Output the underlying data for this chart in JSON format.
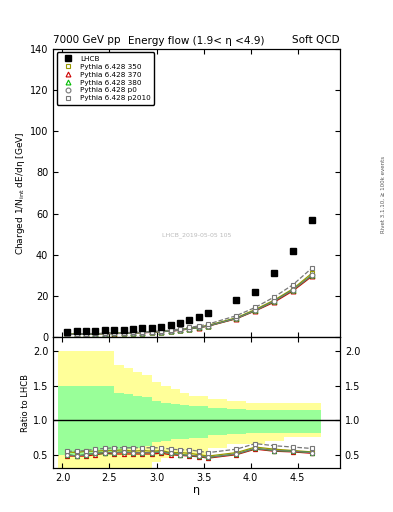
{
  "title_left": "7000 GeV pp",
  "title_right": "Soft QCD",
  "plot_title": "Energy flow (1.9< η <4.9)",
  "ylabel_main": "Charged 1/N$_\\mathrm{int}$ dE/dη [GeV]",
  "ylabel_ratio": "Ratio to LHCB",
  "xlabel": "η",
  "right_label": "Rivet 3.1.10, ≥ 100k events",
  "watermark": "LHCB_2019-05-05 105",
  "lhcb_eta": [
    2.05,
    2.15,
    2.25,
    2.35,
    2.45,
    2.55,
    2.65,
    2.75,
    2.85,
    2.95,
    3.05,
    3.15,
    3.25,
    3.35,
    3.45,
    3.55,
    3.85,
    4.05,
    4.25,
    4.45,
    4.65
  ],
  "lhcb_y": [
    2.8,
    3.0,
    3.1,
    3.2,
    3.3,
    3.5,
    3.7,
    4.0,
    4.3,
    4.7,
    5.2,
    6.0,
    7.0,
    8.5,
    10.0,
    12.0,
    18.0,
    22.0,
    31.0,
    42.0,
    57.0
  ],
  "mc_eta": [
    2.05,
    2.15,
    2.25,
    2.35,
    2.45,
    2.55,
    2.65,
    2.75,
    2.85,
    2.95,
    3.05,
    3.15,
    3.25,
    3.35,
    3.45,
    3.55,
    3.85,
    4.05,
    4.25,
    4.45,
    4.65
  ],
  "p350_y": [
    1.5,
    1.6,
    1.7,
    1.75,
    1.85,
    1.95,
    2.1,
    2.2,
    2.4,
    2.6,
    2.9,
    3.2,
    3.7,
    4.4,
    5.0,
    5.8,
    9.5,
    13.5,
    18.0,
    23.5,
    31.0
  ],
  "p370_y": [
    1.35,
    1.45,
    1.5,
    1.6,
    1.7,
    1.8,
    1.9,
    2.05,
    2.2,
    2.4,
    2.7,
    3.0,
    3.4,
    4.1,
    4.7,
    5.4,
    9.0,
    12.8,
    17.0,
    22.5,
    29.5
  ],
  "p380_y": [
    1.4,
    1.45,
    1.55,
    1.65,
    1.75,
    1.85,
    2.0,
    2.1,
    2.3,
    2.5,
    2.8,
    3.1,
    3.5,
    4.2,
    4.8,
    5.5,
    9.2,
    13.0,
    17.5,
    23.0,
    30.0
  ],
  "pp0_y": [
    1.4,
    1.45,
    1.55,
    1.65,
    1.75,
    1.85,
    2.0,
    2.1,
    2.3,
    2.5,
    2.8,
    3.1,
    3.5,
    4.2,
    4.8,
    5.5,
    9.2,
    13.0,
    17.5,
    23.0,
    30.0
  ],
  "pp2010_y": [
    1.55,
    1.65,
    1.75,
    1.85,
    1.95,
    2.1,
    2.2,
    2.4,
    2.6,
    2.8,
    3.1,
    3.5,
    4.0,
    4.8,
    5.5,
    6.4,
    10.5,
    14.5,
    19.5,
    25.5,
    33.5
  ],
  "ylim_main": [
    0,
    140
  ],
  "ylim_ratio": [
    0.3,
    2.2
  ],
  "color_350": "#999900",
  "color_370": "#cc0000",
  "color_380": "#00bb00",
  "color_p0": "#777777",
  "color_p2010": "#777777",
  "xlim": [
    1.9,
    4.95
  ],
  "xticks": [
    2,
    2.5,
    3,
    3.5,
    4,
    4.5
  ],
  "yticks_main": [
    0,
    20,
    40,
    60,
    80,
    100,
    120,
    140
  ],
  "yticks_ratio": [
    0.5,
    1.0,
    1.5,
    2.0
  ],
  "ratio_350": [
    0.54,
    0.53,
    0.55,
    0.55,
    0.56,
    0.56,
    0.57,
    0.55,
    0.56,
    0.55,
    0.56,
    0.53,
    0.53,
    0.52,
    0.5,
    0.48,
    0.53,
    0.61,
    0.58,
    0.56,
    0.54
  ],
  "ratio_370": [
    0.48,
    0.48,
    0.48,
    0.5,
    0.52,
    0.51,
    0.51,
    0.51,
    0.51,
    0.51,
    0.52,
    0.5,
    0.49,
    0.48,
    0.47,
    0.45,
    0.5,
    0.58,
    0.55,
    0.54,
    0.52
  ],
  "ratio_380": [
    0.5,
    0.48,
    0.5,
    0.52,
    0.53,
    0.53,
    0.54,
    0.53,
    0.53,
    0.53,
    0.54,
    0.52,
    0.5,
    0.49,
    0.48,
    0.46,
    0.51,
    0.59,
    0.56,
    0.55,
    0.53
  ],
  "ratio_p0": [
    0.5,
    0.48,
    0.5,
    0.52,
    0.53,
    0.53,
    0.54,
    0.53,
    0.53,
    0.53,
    0.54,
    0.52,
    0.5,
    0.49,
    0.48,
    0.46,
    0.51,
    0.59,
    0.56,
    0.55,
    0.53
  ],
  "ratio_p2010": [
    0.55,
    0.55,
    0.56,
    0.58,
    0.59,
    0.6,
    0.6,
    0.6,
    0.6,
    0.6,
    0.6,
    0.58,
    0.57,
    0.57,
    0.55,
    0.53,
    0.58,
    0.66,
    0.63,
    0.61,
    0.59
  ],
  "bin_edges": [
    1.95,
    2.05,
    2.15,
    2.25,
    2.35,
    2.45,
    2.55,
    2.65,
    2.75,
    2.85,
    2.95,
    3.05,
    3.15,
    3.25,
    3.35,
    3.45,
    3.55,
    3.75,
    3.95,
    4.15,
    4.35,
    4.75
  ],
  "band_yellow_lo": [
    0.3,
    0.3,
    0.3,
    0.3,
    0.3,
    0.3,
    0.3,
    0.3,
    0.3,
    0.3,
    0.4,
    0.45,
    0.48,
    0.5,
    0.5,
    0.5,
    0.6,
    0.65,
    0.65,
    0.7,
    0.75
  ],
  "band_yellow_hi": [
    2.0,
    2.0,
    2.0,
    2.0,
    2.0,
    2.0,
    1.8,
    1.75,
    1.7,
    1.65,
    1.55,
    1.5,
    1.45,
    1.4,
    1.35,
    1.35,
    1.3,
    1.28,
    1.25,
    1.25,
    1.25
  ],
  "band_green_lo": [
    0.5,
    0.5,
    0.5,
    0.5,
    0.5,
    0.5,
    0.55,
    0.58,
    0.6,
    0.62,
    0.68,
    0.7,
    0.72,
    0.73,
    0.74,
    0.74,
    0.78,
    0.8,
    0.82,
    0.82,
    0.82
  ],
  "band_green_hi": [
    1.5,
    1.5,
    1.5,
    1.5,
    1.5,
    1.5,
    1.4,
    1.38,
    1.35,
    1.33,
    1.28,
    1.25,
    1.23,
    1.22,
    1.21,
    1.21,
    1.18,
    1.16,
    1.15,
    1.15,
    1.15
  ]
}
